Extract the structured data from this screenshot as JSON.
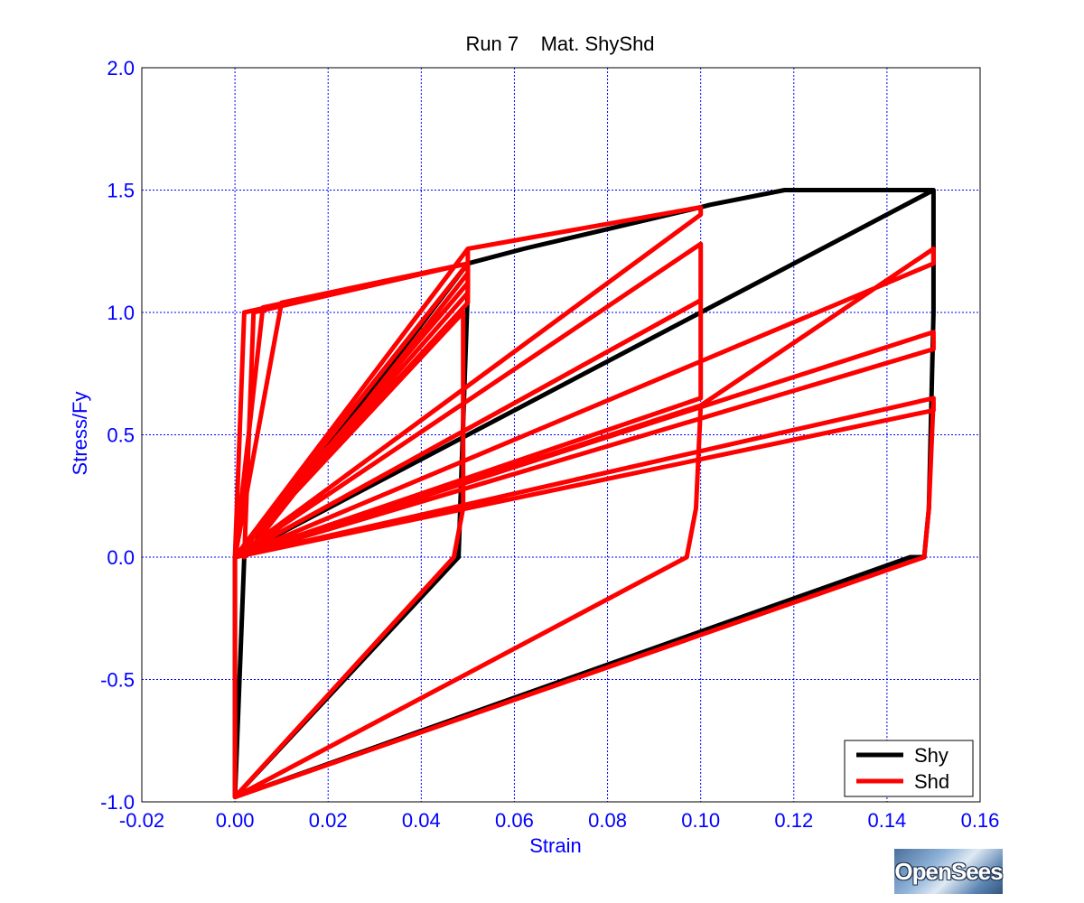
{
  "chart_data": {
    "type": "line",
    "title": "Run 7    Mat. ShyShd",
    "xlabel": "Strain",
    "ylabel": "Stress/Fy",
    "xlim": [
      -0.02,
      0.16
    ],
    "ylim": [
      -1.0,
      2.0
    ],
    "xticks": [
      "-0.02",
      "0.00",
      "0.02",
      "0.04",
      "0.06",
      "0.08",
      "0.10",
      "0.12",
      "0.14",
      "0.16"
    ],
    "yticks": [
      "-1.0",
      "-0.5",
      "0.0",
      "0.5",
      "1.0",
      "1.5",
      "2.0"
    ],
    "grid": true,
    "legend_position": "bottom-right",
    "series": [
      {
        "name": "Shy",
        "color": "#000000",
        "x": [
          0.0,
          0.002,
          0.05,
          0.05,
          0.048,
          0.0,
          0.0,
          0.05,
          0.062,
          0.1,
          0.102,
          0.118,
          0.15,
          0.15,
          0.149,
          0.148,
          0.145,
          0.0,
          0.0,
          0.1,
          0.15
        ],
        "y": [
          -0.98,
          0.0,
          1.2,
          1.1,
          0.0,
          -0.98,
          0.0,
          1.2,
          1.26,
          1.43,
          1.44,
          1.5,
          1.5,
          1.0,
          0.2,
          0.0,
          0.0,
          -0.98,
          0.0,
          1.0,
          1.5
        ]
      },
      {
        "name": "Shd",
        "color": "#ff0000",
        "x": [
          0.0,
          0.0,
          0.002,
          0.05,
          0.05,
          0.002,
          0.004,
          0.05,
          0.05,
          0.0,
          0.006,
          0.05,
          0.05,
          0.0,
          0.01,
          0.05,
          0.05,
          0.0,
          0.049,
          0.049,
          0.047,
          0.0,
          0.0,
          0.05,
          0.05,
          0.0,
          0.05,
          0.1,
          0.1,
          0.0,
          0.1,
          0.1,
          0.0,
          0.1,
          0.1,
          0.0,
          0.1,
          0.099,
          0.097,
          0.0,
          0.0,
          0.1,
          0.15,
          0.15,
          0.0,
          0.15,
          0.15,
          0.0,
          0.15,
          0.15,
          0.0,
          0.15,
          0.149,
          0.148,
          0.0,
          0.0
        ],
        "y": [
          -0.98,
          0.0,
          1.0,
          1.2,
          1.16,
          0.0,
          1.0,
          1.2,
          1.12,
          0.0,
          1.02,
          1.2,
          1.08,
          0.0,
          1.04,
          1.2,
          1.04,
          0.0,
          1.0,
          0.2,
          0.0,
          -0.98,
          0.0,
          1.2,
          1.26,
          0.0,
          1.26,
          1.43,
          1.4,
          0.0,
          1.28,
          1.05,
          0.0,
          1.05,
          0.65,
          0.0,
          0.62,
          0.2,
          0.0,
          -0.98,
          0.0,
          0.62,
          1.26,
          1.2,
          0.0,
          0.92,
          0.85,
          0.0,
          0.65,
          0.6,
          0.0,
          0.65,
          0.2,
          0.0,
          -0.98,
          0.0
        ]
      }
    ]
  },
  "logo": {
    "text": "OpenSees"
  }
}
